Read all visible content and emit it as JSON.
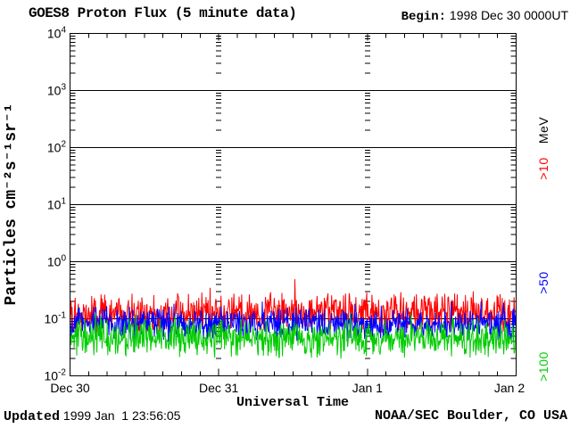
{
  "header": {
    "title": "GOES8 Proton Flux (5 minute data)",
    "begin_label": "Begin:",
    "begin_value": " 1998 Dec 30 0000UT"
  },
  "footer": {
    "updated_label": "Updated",
    "updated_value": " 1999 Jan  1 23:56:05",
    "credit": "NOAA/SEC Boulder, CO USA"
  },
  "chart_data": {
    "type": "line",
    "title": "GOES8 Proton Flux (5 minute data)",
    "begin": "1998 Dec 30 0000UT",
    "instrument": "GOES8",
    "cadence": "5 minute data",
    "x_axis": {
      "label": "Universal Time",
      "tick_labels": [
        "Dec 30",
        "Dec 31",
        "Jan 1",
        "Jan 2"
      ],
      "days": 3,
      "minor_ticks_per_day": 8,
      "day_gridline_style": "dashed"
    },
    "y_axis": {
      "label": "Particles cm⁻²s⁻¹sr⁻¹",
      "scale": "log10",
      "min_exponent": -2,
      "max_exponent": 4,
      "tick_exponents": [
        4,
        3,
        2,
        1,
        0,
        -1,
        -2
      ],
      "decade_gridlines": [
        3,
        2,
        1,
        0,
        -1
      ],
      "grid": true
    },
    "legend_title": {
      "text": "MeV",
      "color": "#000000"
    },
    "series": [
      {
        "label": ">10",
        "energy": ">10 MeV",
        "color": "#ff0000",
        "n_points": 864,
        "log10_median": -0.9,
        "log10_spread": 0.2,
        "log10_min": -1.24,
        "log10_max": -0.3,
        "seed": 101,
        "approx_flux_range": [
          0.06,
          0.5
        ],
        "approx_median_flux": 0.125
      },
      {
        "label": ">50",
        "energy": ">50 MeV",
        "color": "#0000ff",
        "n_points": 864,
        "log10_median": -1.09,
        "log10_spread": 0.16,
        "log10_min": -1.47,
        "log10_max": -0.7,
        "seed": 202,
        "approx_flux_range": [
          0.035,
          0.2
        ],
        "approx_median_flux": 0.08
      },
      {
        "label": ">100",
        "energy": ">100 MeV",
        "color": "#00cc00",
        "n_points": 864,
        "log10_median": -1.34,
        "log10_spread": 0.19,
        "log10_min": -1.79,
        "log10_max": -0.9,
        "seed": 303,
        "approx_flux_range": [
          0.016,
          0.12
        ],
        "approx_median_flux": 0.046
      }
    ]
  }
}
